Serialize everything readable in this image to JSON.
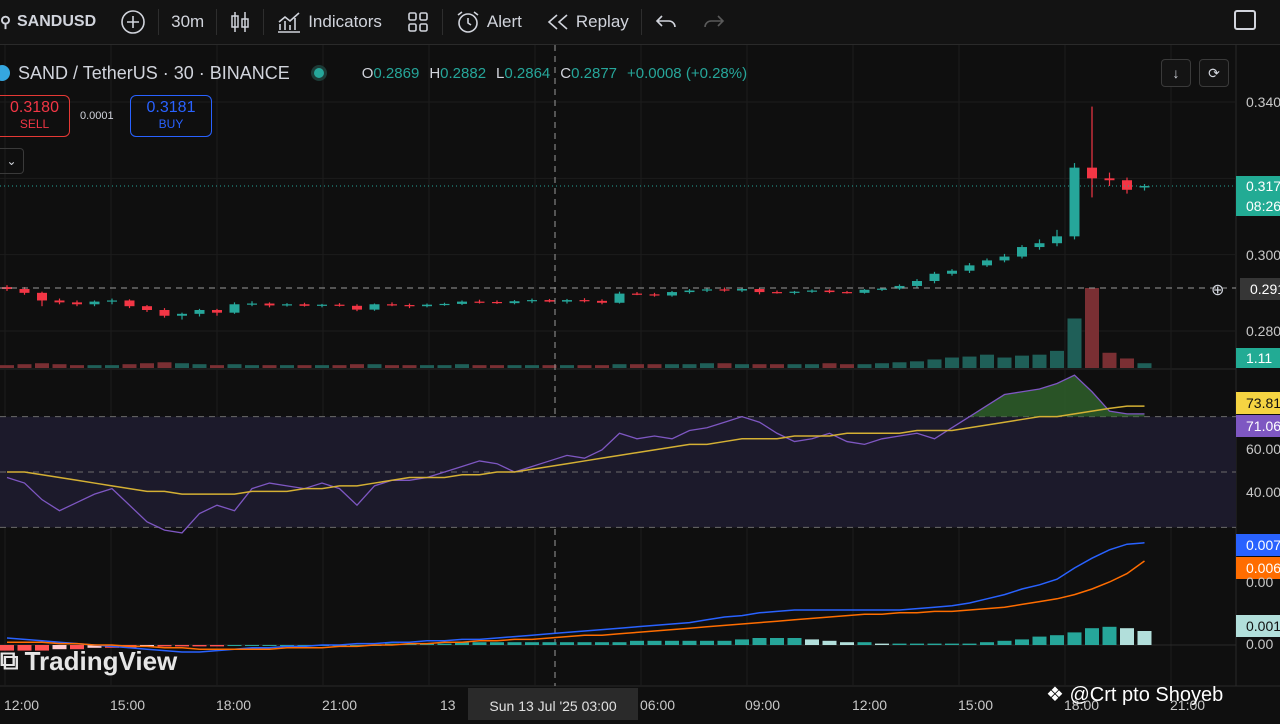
{
  "toolbar": {
    "symbol": "SANDUSD",
    "interval": "30m",
    "indicators_label": "Indicators",
    "alert_label": "Alert",
    "replay_label": "Replay"
  },
  "legend": {
    "title": "SAND / TetherUS · 30 · BINANCE",
    "o_key": "O",
    "o": "0.2869",
    "h_key": "H",
    "h": "0.2882",
    "l_key": "L",
    "l": "0.2864",
    "c_key": "C",
    "c": "0.2877",
    "change": "+0.0008 (+0.28%)"
  },
  "trade": {
    "sell_price": "0.3180",
    "sell_label": "SELL",
    "spread": "0.0001",
    "buy_price": "0.3181",
    "buy_label": "BUY"
  },
  "price_axis": {
    "labels": [
      "0.340",
      "0.300",
      "0.280"
    ],
    "current_tag": "0.317",
    "countdown_tag": "08:26",
    "crosshair_tag": "0.291",
    "volume_tag": "1.11"
  },
  "rsi_axis": {
    "tag_ma": "73.81",
    "tag_rsi": "71.06",
    "labels": [
      "60.00",
      "40.00"
    ]
  },
  "macd_axis": {
    "tag_macd": "0.007",
    "tag_signal": "0.006",
    "tag_hist": "0.001",
    "labels": [
      "0.00",
      "0.00"
    ]
  },
  "time_axis": {
    "labels": [
      "12:00",
      "15:00",
      "18:00",
      "21:00",
      "13",
      "06:00",
      "09:00",
      "12:00",
      "15:00",
      "18:00",
      "21:00"
    ],
    "crosshair": "Sun 13 Jul '25   03:00"
  },
  "watermark": "TradingView",
  "credit": "@Crt pto Shoyeb",
  "colors": {
    "up": "#26a69a",
    "down": "#f23645",
    "rsi": "#7e57c2",
    "rsi_ma": "#d4b034",
    "macd": "#2962ff",
    "signal": "#ff6d00"
  },
  "chart_data": {
    "type": "candlestick",
    "symbol": "SAND / TetherUS",
    "interval": "30",
    "exchange": "BINANCE",
    "last_ohlc": {
      "open": 0.2869,
      "high": 0.2882,
      "low": 0.2864,
      "close": 0.2877
    },
    "candles": [
      {
        "o": 0.2915,
        "h": 0.292,
        "l": 0.2905,
        "c": 0.291
      },
      {
        "o": 0.291,
        "h": 0.2915,
        "l": 0.2895,
        "c": 0.29
      },
      {
        "o": 0.29,
        "h": 0.2903,
        "l": 0.2865,
        "c": 0.288
      },
      {
        "o": 0.288,
        "h": 0.2885,
        "l": 0.287,
        "c": 0.2875
      },
      {
        "o": 0.2875,
        "h": 0.288,
        "l": 0.2865,
        "c": 0.287
      },
      {
        "o": 0.287,
        "h": 0.288,
        "l": 0.2865,
        "c": 0.2877
      },
      {
        "o": 0.2877,
        "h": 0.2885,
        "l": 0.287,
        "c": 0.288
      },
      {
        "o": 0.288,
        "h": 0.2883,
        "l": 0.286,
        "c": 0.2865
      },
      {
        "o": 0.2865,
        "h": 0.2868,
        "l": 0.285,
        "c": 0.2855
      },
      {
        "o": 0.2855,
        "h": 0.286,
        "l": 0.2835,
        "c": 0.284
      },
      {
        "o": 0.284,
        "h": 0.2848,
        "l": 0.283,
        "c": 0.2845
      },
      {
        "o": 0.2845,
        "h": 0.2858,
        "l": 0.2838,
        "c": 0.2855
      },
      {
        "o": 0.2855,
        "h": 0.2858,
        "l": 0.284,
        "c": 0.2848
      },
      {
        "o": 0.2848,
        "h": 0.2875,
        "l": 0.2845,
        "c": 0.287
      },
      {
        "o": 0.287,
        "h": 0.2878,
        "l": 0.2865,
        "c": 0.2872
      },
      {
        "o": 0.2872,
        "h": 0.2875,
        "l": 0.2862,
        "c": 0.2867
      },
      {
        "o": 0.2867,
        "h": 0.2873,
        "l": 0.2864,
        "c": 0.287
      },
      {
        "o": 0.287,
        "h": 0.2874,
        "l": 0.2864,
        "c": 0.2866
      },
      {
        "o": 0.2866,
        "h": 0.2871,
        "l": 0.2862,
        "c": 0.2869
      },
      {
        "o": 0.2869,
        "h": 0.2873,
        "l": 0.2864,
        "c": 0.2866
      },
      {
        "o": 0.2866,
        "h": 0.287,
        "l": 0.2852,
        "c": 0.2856
      },
      {
        "o": 0.2856,
        "h": 0.2872,
        "l": 0.2853,
        "c": 0.287
      },
      {
        "o": 0.287,
        "h": 0.2875,
        "l": 0.2865,
        "c": 0.2868
      },
      {
        "o": 0.2868,
        "h": 0.2872,
        "l": 0.286,
        "c": 0.2865
      },
      {
        "o": 0.2865,
        "h": 0.2872,
        "l": 0.2862,
        "c": 0.2869
      },
      {
        "o": 0.2869,
        "h": 0.2874,
        "l": 0.2866,
        "c": 0.2871
      },
      {
        "o": 0.2871,
        "h": 0.288,
        "l": 0.2868,
        "c": 0.2877
      },
      {
        "o": 0.2877,
        "h": 0.2882,
        "l": 0.2872,
        "c": 0.2876
      },
      {
        "o": 0.2876,
        "h": 0.288,
        "l": 0.2871,
        "c": 0.2873
      },
      {
        "o": 0.2873,
        "h": 0.2881,
        "l": 0.287,
        "c": 0.2878
      },
      {
        "o": 0.2878,
        "h": 0.2885,
        "l": 0.2873,
        "c": 0.2881
      },
      {
        "o": 0.2881,
        "h": 0.2884,
        "l": 0.2875,
        "c": 0.2877
      },
      {
        "o": 0.2877,
        "h": 0.2884,
        "l": 0.2872,
        "c": 0.2881
      },
      {
        "o": 0.2881,
        "h": 0.2886,
        "l": 0.2875,
        "c": 0.2879
      },
      {
        "o": 0.2879,
        "h": 0.2883,
        "l": 0.287,
        "c": 0.2874
      },
      {
        "o": 0.2874,
        "h": 0.2903,
        "l": 0.2872,
        "c": 0.2898
      },
      {
        "o": 0.2898,
        "h": 0.2902,
        "l": 0.2894,
        "c": 0.2896
      },
      {
        "o": 0.2896,
        "h": 0.29,
        "l": 0.289,
        "c": 0.2893
      },
      {
        "o": 0.2893,
        "h": 0.2905,
        "l": 0.289,
        "c": 0.2902
      },
      {
        "o": 0.2902,
        "h": 0.291,
        "l": 0.2898,
        "c": 0.2906
      },
      {
        "o": 0.2906,
        "h": 0.2912,
        "l": 0.2902,
        "c": 0.2909
      },
      {
        "o": 0.2909,
        "h": 0.2914,
        "l": 0.2903,
        "c": 0.2906
      },
      {
        "o": 0.2906,
        "h": 0.2913,
        "l": 0.2902,
        "c": 0.291
      },
      {
        "o": 0.291,
        "h": 0.2912,
        "l": 0.2896,
        "c": 0.2902
      },
      {
        "o": 0.2902,
        "h": 0.2906,
        "l": 0.2898,
        "c": 0.29
      },
      {
        "o": 0.29,
        "h": 0.2905,
        "l": 0.2896,
        "c": 0.2903
      },
      {
        "o": 0.2903,
        "h": 0.2909,
        "l": 0.29,
        "c": 0.2906
      },
      {
        "o": 0.2906,
        "h": 0.2909,
        "l": 0.2899,
        "c": 0.2902
      },
      {
        "o": 0.2902,
        "h": 0.2905,
        "l": 0.2898,
        "c": 0.29
      },
      {
        "o": 0.29,
        "h": 0.291,
        "l": 0.2898,
        "c": 0.2908
      },
      {
        "o": 0.2908,
        "h": 0.2914,
        "l": 0.2905,
        "c": 0.2911
      },
      {
        "o": 0.2911,
        "h": 0.2922,
        "l": 0.2908,
        "c": 0.2918
      },
      {
        "o": 0.2918,
        "h": 0.2936,
        "l": 0.2914,
        "c": 0.2931
      },
      {
        "o": 0.2931,
        "h": 0.2955,
        "l": 0.2925,
        "c": 0.295
      },
      {
        "o": 0.295,
        "h": 0.2962,
        "l": 0.2945,
        "c": 0.2958
      },
      {
        "o": 0.2958,
        "h": 0.2978,
        "l": 0.2952,
        "c": 0.2972
      },
      {
        "o": 0.2972,
        "h": 0.299,
        "l": 0.2968,
        "c": 0.2985
      },
      {
        "o": 0.2985,
        "h": 0.3002,
        "l": 0.298,
        "c": 0.2995
      },
      {
        "o": 0.2995,
        "h": 0.3025,
        "l": 0.299,
        "c": 0.302
      },
      {
        "o": 0.302,
        "h": 0.304,
        "l": 0.3013,
        "c": 0.303
      },
      {
        "o": 0.303,
        "h": 0.3065,
        "l": 0.3022,
        "c": 0.3048
      },
      {
        "o": 0.3048,
        "h": 0.324,
        "l": 0.304,
        "c": 0.3228
      },
      {
        "o": 0.3228,
        "h": 0.3388,
        "l": 0.315,
        "c": 0.32
      },
      {
        "o": 0.32,
        "h": 0.3215,
        "l": 0.318,
        "c": 0.3195
      },
      {
        "o": 0.3195,
        "h": 0.3202,
        "l": 0.316,
        "c": 0.317
      },
      {
        "o": 0.3176,
        "h": 0.3185,
        "l": 0.3168,
        "c": 0.318
      }
    ],
    "volume": [
      3,
      4,
      5,
      4,
      3,
      3,
      3,
      4,
      5,
      6,
      5,
      4,
      3,
      4,
      3,
      3,
      3,
      3,
      3,
      3,
      4,
      4,
      3,
      3,
      3,
      3,
      4,
      3,
      3,
      3,
      3,
      3,
      3,
      3,
      3,
      4,
      4,
      4,
      4,
      4,
      5,
      5,
      4,
      4,
      4,
      4,
      4,
      5,
      4,
      4,
      5,
      6,
      7,
      9,
      11,
      12,
      14,
      11,
      13,
      14,
      18,
      52,
      84,
      16,
      10,
      5
    ],
    "rsi": [
      48,
      46,
      40,
      36,
      39,
      42,
      44,
      38,
      32,
      29,
      28,
      35,
      38,
      36,
      44,
      46,
      45,
      44,
      46,
      44,
      38,
      45,
      47,
      47,
      48,
      50,
      52,
      54,
      53,
      50,
      52,
      54,
      56,
      55,
      58,
      64,
      62,
      63,
      62,
      65,
      66,
      68,
      70,
      68,
      64,
      61,
      62,
      64,
      61,
      60,
      62,
      63,
      64,
      62,
      66,
      70,
      74,
      78,
      79,
      80,
      82,
      85,
      79,
      72,
      71,
      71
    ],
    "rsi_ma": [
      50,
      50,
      49,
      48,
      47,
      46,
      45,
      44,
      43,
      43,
      42,
      42,
      42,
      42,
      43,
      43,
      43,
      44,
      44,
      45,
      45,
      46,
      47,
      48,
      48,
      48,
      49,
      49,
      50,
      50,
      51,
      52,
      53,
      54,
      55,
      56,
      57,
      58,
      59,
      60,
      60,
      61,
      62,
      62,
      62,
      63,
      63,
      63,
      64,
      64,
      64,
      64,
      65,
      65,
      65,
      66,
      67,
      68,
      69,
      70,
      70,
      71,
      72,
      73,
      73.81,
      73.81
    ],
    "rsi_levels": {
      "upper": 70,
      "middle": 50,
      "lower": 30
    },
    "macd": [
      0.0005,
      0.0004,
      0.0003,
      0.0002,
      0.0001,
      0.0,
      -0.0001,
      -0.0002,
      -0.0003,
      -0.0004,
      -0.0005,
      -0.0005,
      -0.0004,
      -0.0003,
      -0.0002,
      -0.0002,
      -0.0001,
      -0.0001,
      0.0,
      0.0,
      0.0001,
      0.0001,
      0.0002,
      0.0002,
      0.0003,
      0.0003,
      0.0004,
      0.0004,
      0.0005,
      0.0006,
      0.0007,
      0.0008,
      0.0009,
      0.001,
      0.0011,
      0.0012,
      0.0013,
      0.0014,
      0.0015,
      0.0016,
      0.0018,
      0.002,
      0.0021,
      0.0023,
      0.0024,
      0.0025,
      0.0025,
      0.0025,
      0.0025,
      0.0025,
      0.0025,
      0.0025,
      0.0026,
      0.0027,
      0.0028,
      0.003,
      0.0033,
      0.0036,
      0.004,
      0.0043,
      0.0047,
      0.0055,
      0.0062,
      0.0068,
      0.0072,
      0.0073
    ],
    "signal": [
      0.0002,
      0.0002,
      0.0002,
      0.0001,
      0.0001,
      0.0,
      0.0,
      -0.0001,
      -0.0001,
      -0.0002,
      -0.0002,
      -0.0003,
      -0.0003,
      -0.0003,
      -0.0003,
      -0.0003,
      -0.0002,
      -0.0002,
      -0.0002,
      -0.0001,
      -0.0001,
      0.0,
      0.0,
      0.0001,
      0.0001,
      0.0002,
      0.0002,
      0.0003,
      0.0003,
      0.0004,
      0.0004,
      0.0005,
      0.0006,
      0.0007,
      0.0007,
      0.0008,
      0.0009,
      0.001,
      0.0011,
      0.0012,
      0.0013,
      0.0014,
      0.0015,
      0.0016,
      0.0017,
      0.0018,
      0.0019,
      0.002,
      0.0021,
      0.0022,
      0.0022,
      0.0023,
      0.0023,
      0.0024,
      0.0024,
      0.0025,
      0.0026,
      0.0027,
      0.0029,
      0.0031,
      0.0033,
      0.0036,
      0.004,
      0.0045,
      0.0051,
      0.006
    ],
    "hist": [
      -0.0004,
      -0.0004,
      -0.0004,
      -0.0003,
      -0.0003,
      -0.0002,
      -0.0002,
      -0.0002,
      -0.0001,
      -0.0001,
      -0.0001,
      -0.0001,
      -0.0001,
      0.0,
      0.0,
      0.0,
      0.0,
      0.0,
      0.0,
      0.0,
      0.0,
      0.0,
      0.0001,
      0.0001,
      0.0001,
      0.0001,
      0.0002,
      0.0002,
      0.0002,
      0.0002,
      0.0002,
      0.0002,
      0.0002,
      0.0002,
      0.0002,
      0.0002,
      0.0003,
      0.0003,
      0.0003,
      0.0003,
      0.0003,
      0.0003,
      0.0004,
      0.0005,
      0.0005,
      0.0005,
      0.0004,
      0.0003,
      0.0002,
      0.0002,
      0.0001,
      0.0001,
      0.0001,
      0.0001,
      0.0001,
      0.0001,
      0.0002,
      0.0003,
      0.0004,
      0.0006,
      0.0007,
      0.0009,
      0.0012,
      0.0013,
      0.0012,
      0.001
    ]
  }
}
